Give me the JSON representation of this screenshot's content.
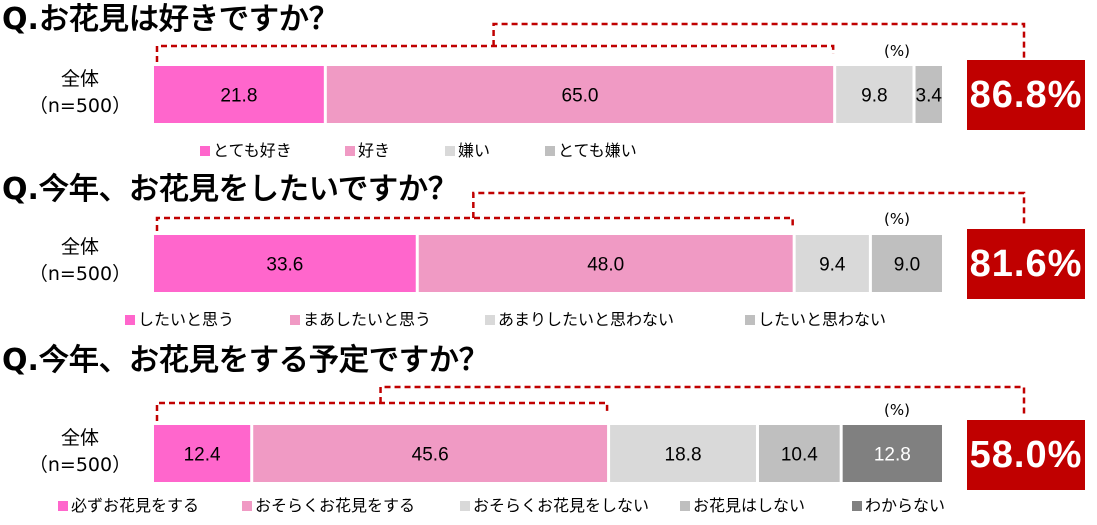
{
  "unit": "(%)",
  "chart_data": [
    {
      "type": "bar",
      "title": "Q.お花見は好きですか？",
      "category_label": [
        "全体",
        "（n=500）"
      ],
      "series": [
        {
          "name": "とても好き",
          "values": [
            21.8
          ],
          "color": "#ff66cc"
        },
        {
          "name": "好き",
          "values": [
            65.0
          ],
          "color": "#f09ac4"
        },
        {
          "name": "嫌い",
          "values": [
            9.8
          ],
          "color": "#d9d9d9"
        },
        {
          "name": "とても嫌い",
          "values": [
            3.4
          ],
          "color": "#bfbfbf"
        }
      ],
      "total": "86.8%"
    },
    {
      "type": "bar",
      "title": "Q.今年、お花見をしたいですか？",
      "category_label": [
        "全体",
        "（n=500）"
      ],
      "series": [
        {
          "name": "したいと思う",
          "values": [
            33.6
          ],
          "color": "#ff66cc"
        },
        {
          "name": "まあしたいと思う",
          "values": [
            48.0
          ],
          "color": "#f09ac4"
        },
        {
          "name": "あまりしたいと思わない",
          "values": [
            9.4
          ],
          "color": "#d9d9d9"
        },
        {
          "name": "したいと思わない",
          "values": [
            9.0
          ],
          "color": "#bfbfbf"
        }
      ],
      "total": "81.6%"
    },
    {
      "type": "bar",
      "title": "Q.今年、お花見をする予定ですか？",
      "category_label": [
        "全体",
        "（n=500）"
      ],
      "series": [
        {
          "name": "必ずお花見をする",
          "values": [
            12.4
          ],
          "color": "#ff66cc"
        },
        {
          "name": "おそらくお花見をする",
          "values": [
            45.6
          ],
          "color": "#f09ac4"
        },
        {
          "name": "おそらくお花見をしない",
          "values": [
            18.8
          ],
          "color": "#d9d9d9"
        },
        {
          "name": "お花見はしない",
          "values": [
            10.4
          ],
          "color": "#bfbfbf"
        },
        {
          "name": "わからない",
          "values": [
            12.8
          ],
          "color": "#808080"
        }
      ],
      "total": "58.0%"
    }
  ],
  "colors": {
    "bracket": "#c00000",
    "total_box": "#c00000",
    "value_text_dark": "#ffffff"
  }
}
